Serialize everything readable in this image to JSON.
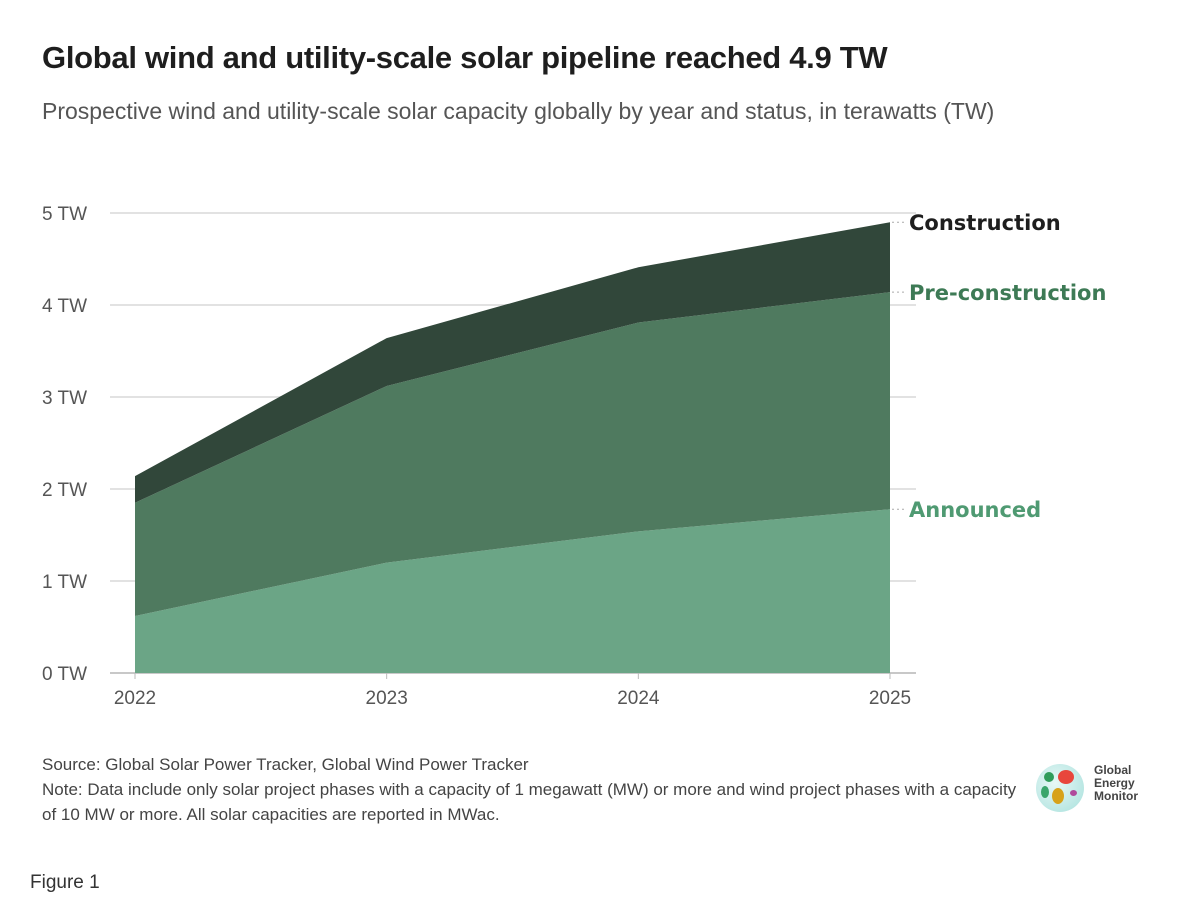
{
  "header": {
    "title": "Global wind and utility-scale solar pipeline reached 4.9 TW",
    "subtitle": "Prospective wind and utility-scale solar capacity globally by year and status, in terawatts (TW)"
  },
  "chart_data": {
    "type": "area",
    "stacked": true,
    "title": "Global wind and utility-scale solar pipeline reached 4.9 TW",
    "subtitle": "Prospective wind and utility-scale solar capacity globally by year and status, in terawatts (TW)",
    "x": [
      "2022",
      "2023",
      "2024",
      "2025"
    ],
    "ylim": [
      0,
      5
    ],
    "yticks": [
      "0 TW",
      "1 TW",
      "2 TW",
      "3 TW",
      "4 TW",
      "5 TW"
    ],
    "grid": true,
    "legend": "right (direct labels)",
    "series": [
      {
        "name": "Announced",
        "values": [
          0.62,
          1.2,
          1.54,
          1.78
        ],
        "color": "#6ba586",
        "label_color": "#4f9a72"
      },
      {
        "name": "Pre-construction",
        "values": [
          1.23,
          1.92,
          2.27,
          2.36
        ],
        "color": "#4f7a5f",
        "label_color": "#3d7a55"
      },
      {
        "name": "Construction",
        "values": [
          0.29,
          0.52,
          0.6,
          0.76
        ],
        "color": "#31473a",
        "label_color": "#1e1e1e"
      }
    ]
  },
  "footer": {
    "source": "Source: Global Solar Power Tracker, Global Wind Power Tracker",
    "note": "Note: Data include only solar project phases with a capacity of 1 megawatt (MW) or more and wind project phases with a capacity of 10 MW or more. All solar capacities are reported in MWac.",
    "logo_text": [
      "Global",
      "Energy",
      "Monitor"
    ],
    "figure_label": "Figure 1"
  }
}
